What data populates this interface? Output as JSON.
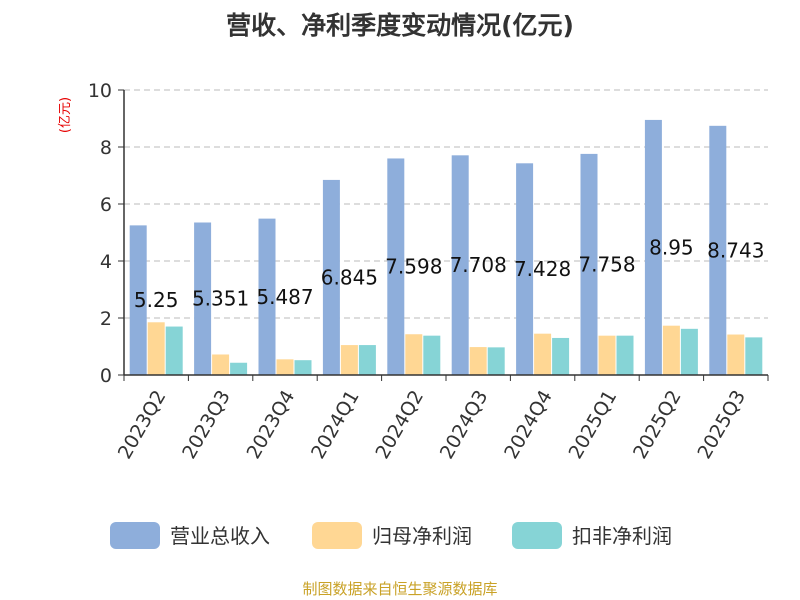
{
  "chart_data": {
    "type": "bar",
    "title": "营收、净利季度变动情况(亿元)",
    "ylabel": "(亿元)",
    "xlabel": "",
    "ylim": [
      0,
      10
    ],
    "yticks": [
      0,
      2,
      4,
      6,
      8,
      10
    ],
    "grid": true,
    "legend_position": "bottom",
    "categories": [
      "2023Q2",
      "2023Q3",
      "2023Q4",
      "2024Q1",
      "2024Q2",
      "2024Q3",
      "2024Q4",
      "2025Q1",
      "2025Q2",
      "2025Q3"
    ],
    "series": [
      {
        "name": "营业总收入",
        "color": "#8EAEDB",
        "values": [
          5.25,
          5.351,
          5.487,
          6.845,
          7.598,
          7.708,
          7.428,
          7.758,
          8.95,
          8.743
        ]
      },
      {
        "name": "归母净利润",
        "color": "#FFD794",
        "values": [
          1.85,
          0.72,
          0.55,
          1.05,
          1.43,
          0.98,
          1.45,
          1.38,
          1.73,
          1.42
        ]
      },
      {
        "name": "扣非净利润",
        "color": "#86D4D6",
        "values": [
          1.7,
          0.43,
          0.52,
          1.05,
          1.38,
          0.97,
          1.3,
          1.38,
          1.62,
          1.32
        ]
      }
    ],
    "data_labels": [
      "5.25",
      "5.351",
      "5.487",
      "6.845",
      "7.598",
      "7.708",
      "7.428",
      "7.758",
      "8.95",
      "8.743"
    ]
  },
  "colors": {
    "axis": "#333333",
    "grid": "#bbbbbb",
    "ylabel": "#e60000",
    "source": "#c9a227"
  },
  "source_text": "制图数据来自恒生聚源数据库"
}
